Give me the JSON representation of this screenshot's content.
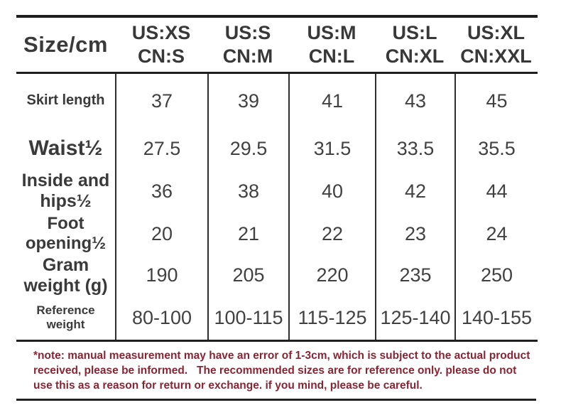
{
  "table": {
    "corner_label": "Size/cm",
    "columns": [
      {
        "us": "US:XS",
        "cn": "CN:S"
      },
      {
        "us": "US:S",
        "cn": "CN:M"
      },
      {
        "us": "US:M",
        "cn": "CN:L"
      },
      {
        "us": "US:L",
        "cn": "CN:XL"
      },
      {
        "us": "US:XL",
        "cn": "CN:XXL"
      }
    ],
    "rows": [
      {
        "label": "Skirt length",
        "values": [
          "37",
          "39",
          "41",
          "43",
          "45"
        ]
      },
      {
        "label": "Waist½",
        "values": [
          "27.5",
          "29.5",
          "31.5",
          "33.5",
          "35.5"
        ]
      },
      {
        "label": "Inside and hips½",
        "values": [
          "36",
          "38",
          "40",
          "42",
          "44"
        ]
      },
      {
        "label": "Foot opening½",
        "values": [
          "20",
          "21",
          "22",
          "23",
          "24"
        ]
      },
      {
        "label": "Gram weight (g)",
        "values": [
          "190",
          "205",
          "220",
          "235",
          "250"
        ]
      },
      {
        "label": "Reference weight",
        "values": [
          "80-100",
          "100-115",
          "115-125",
          "125-140",
          "140-155"
        ]
      }
    ]
  },
  "note": {
    "text": "*note: manual measurement may have an error of 1-3cm, which is subject to the actual product received, please be informed.   The recommended sizes are for reference only. please do not use this as a reason for return or exchange. if you mind, please be careful."
  },
  "colors": {
    "text": "#3a3a3a",
    "border": "#1f1f1f",
    "note_red": "#8a2433",
    "background": "#ffffff"
  },
  "chart_data": {
    "type": "table",
    "title": "Size/cm",
    "columns": [
      "US:XS CN:S",
      "US:S CN:M",
      "US:M CN:L",
      "US:L CN:XL",
      "US:XL CN:XXL"
    ],
    "rows": [
      {
        "label": "Skirt length",
        "values": [
          37,
          39,
          41,
          43,
          45
        ]
      },
      {
        "label": "Waist½",
        "values": [
          27.5,
          29.5,
          31.5,
          33.5,
          35.5
        ]
      },
      {
        "label": "Inside and hips½",
        "values": [
          36,
          38,
          40,
          42,
          44
        ]
      },
      {
        "label": "Foot opening½",
        "values": [
          20,
          21,
          22,
          23,
          24
        ]
      },
      {
        "label": "Gram weight (g)",
        "values": [
          190,
          205,
          220,
          235,
          250
        ]
      },
      {
        "label": "Reference weight",
        "values": [
          "80-100",
          "100-115",
          "115-125",
          "125-140",
          "140-155"
        ]
      }
    ],
    "note": "*note: manual measurement may have an error of 1-3cm, which is subject to the actual product received, please be informed. The recommended sizes are for reference only. please do not use this as a reason for return or exchange. if you mind, please be careful."
  }
}
